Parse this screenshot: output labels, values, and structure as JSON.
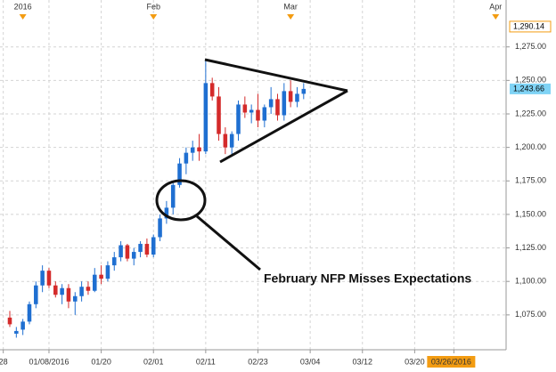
{
  "chart_data": {
    "type": "candlestick",
    "x": [
      1,
      2,
      3,
      4,
      5,
      6,
      7,
      8,
      9,
      10,
      11,
      12,
      13,
      14,
      15,
      16,
      17,
      18,
      19,
      20,
      21,
      22,
      23,
      24,
      25,
      26,
      27,
      28,
      29,
      30,
      31,
      32,
      33,
      34,
      35,
      36,
      37,
      38,
      39,
      40,
      41,
      42,
      43,
      44,
      45,
      46
    ],
    "open": [
      1073,
      1061,
      1064,
      1070,
      1083,
      1097,
      1108,
      1097,
      1090,
      1095,
      1085,
      1089,
      1096,
      1093,
      1105,
      1102,
      1112,
      1118,
      1127,
      1117,
      1122,
      1128,
      1120,
      1133,
      1147,
      1155,
      1172,
      1188,
      1196,
      1200,
      1197,
      1248,
      1238,
      1210,
      1200,
      1210,
      1232,
      1226,
      1228,
      1220,
      1230,
      1236,
      1224,
      1242,
      1234,
      1240
    ],
    "high": [
      1078,
      1066,
      1072,
      1085,
      1100,
      1112,
      1110,
      1100,
      1098,
      1098,
      1092,
      1100,
      1100,
      1110,
      1112,
      1115,
      1122,
      1130,
      1128,
      1125,
      1130,
      1132,
      1135,
      1150,
      1160,
      1175,
      1192,
      1200,
      1205,
      1210,
      1265,
      1252,
      1245,
      1215,
      1212,
      1235,
      1238,
      1232,
      1240,
      1232,
      1245,
      1240,
      1248,
      1250,
      1245,
      1248
    ],
    "low": [
      1066,
      1058,
      1060,
      1068,
      1080,
      1092,
      1095,
      1088,
      1083,
      1080,
      1075,
      1085,
      1090,
      1092,
      1098,
      1100,
      1108,
      1115,
      1115,
      1112,
      1118,
      1118,
      1118,
      1130,
      1143,
      1150,
      1170,
      1180,
      1190,
      1190,
      1195,
      1235,
      1205,
      1195,
      1195,
      1205,
      1222,
      1218,
      1215,
      1215,
      1225,
      1220,
      1220,
      1230,
      1230,
      1236
    ],
    "close": [
      1068,
      1063,
      1070,
      1083,
      1097,
      1108,
      1097,
      1090,
      1095,
      1085,
      1089,
      1096,
      1093,
      1105,
      1102,
      1112,
      1118,
      1127,
      1117,
      1122,
      1128,
      1120,
      1133,
      1147,
      1155,
      1172,
      1188,
      1196,
      1200,
      1197,
      1248,
      1238,
      1210,
      1200,
      1210,
      1232,
      1226,
      1228,
      1220,
      1230,
      1236,
      1224,
      1242,
      1234,
      1240,
      1243.66
    ],
    "up_color": "#1f6fd1",
    "down_color": "#d42a2a",
    "xlim": [
      -0.5,
      77
    ],
    "xticks": [
      {
        "value": 0,
        "label": "28"
      },
      {
        "value": 7,
        "label": "01/08/2016"
      },
      {
        "value": 15,
        "label": "01/20"
      },
      {
        "value": 23,
        "label": "02/01"
      },
      {
        "value": 31,
        "label": "02/11"
      },
      {
        "value": 39,
        "label": "02/23"
      },
      {
        "value": 47,
        "label": "03/04"
      },
      {
        "value": 55,
        "label": "03/12"
      },
      {
        "value": 63,
        "label": "03/20"
      },
      {
        "value": 69,
        "label": "03/26/2016"
      }
    ],
    "top_ticks": [
      {
        "value": 3,
        "label": "2016"
      },
      {
        "value": 23,
        "label": "Feb"
      },
      {
        "value": 44,
        "label": "Mar"
      },
      {
        "value": 75.4,
        "label": "Apr"
      }
    ],
    "ylim": [
      1049,
      1310
    ],
    "yticks": [
      {
        "value": 1075,
        "label": "1,075.00"
      },
      {
        "value": 1100,
        "label": "1,100.00"
      },
      {
        "value": 1125,
        "label": "1,125.00"
      },
      {
        "value": 1150,
        "label": "1,150.00"
      },
      {
        "value": 1175,
        "label": "1,175.00"
      },
      {
        "value": 1200,
        "label": "1,200.00"
      },
      {
        "value": 1225,
        "label": "1,225.00"
      },
      {
        "value": 1250,
        "label": "1,250.00"
      },
      {
        "value": 1275,
        "label": "1,275.00"
      }
    ],
    "price_labels": [
      {
        "value": 1290.14,
        "label": "1,290.14"
      },
      {
        "value": 1243.66,
        "label": "1,243.66"
      }
    ],
    "annotation": "February NFP Misses Expectations",
    "grid": true
  }
}
